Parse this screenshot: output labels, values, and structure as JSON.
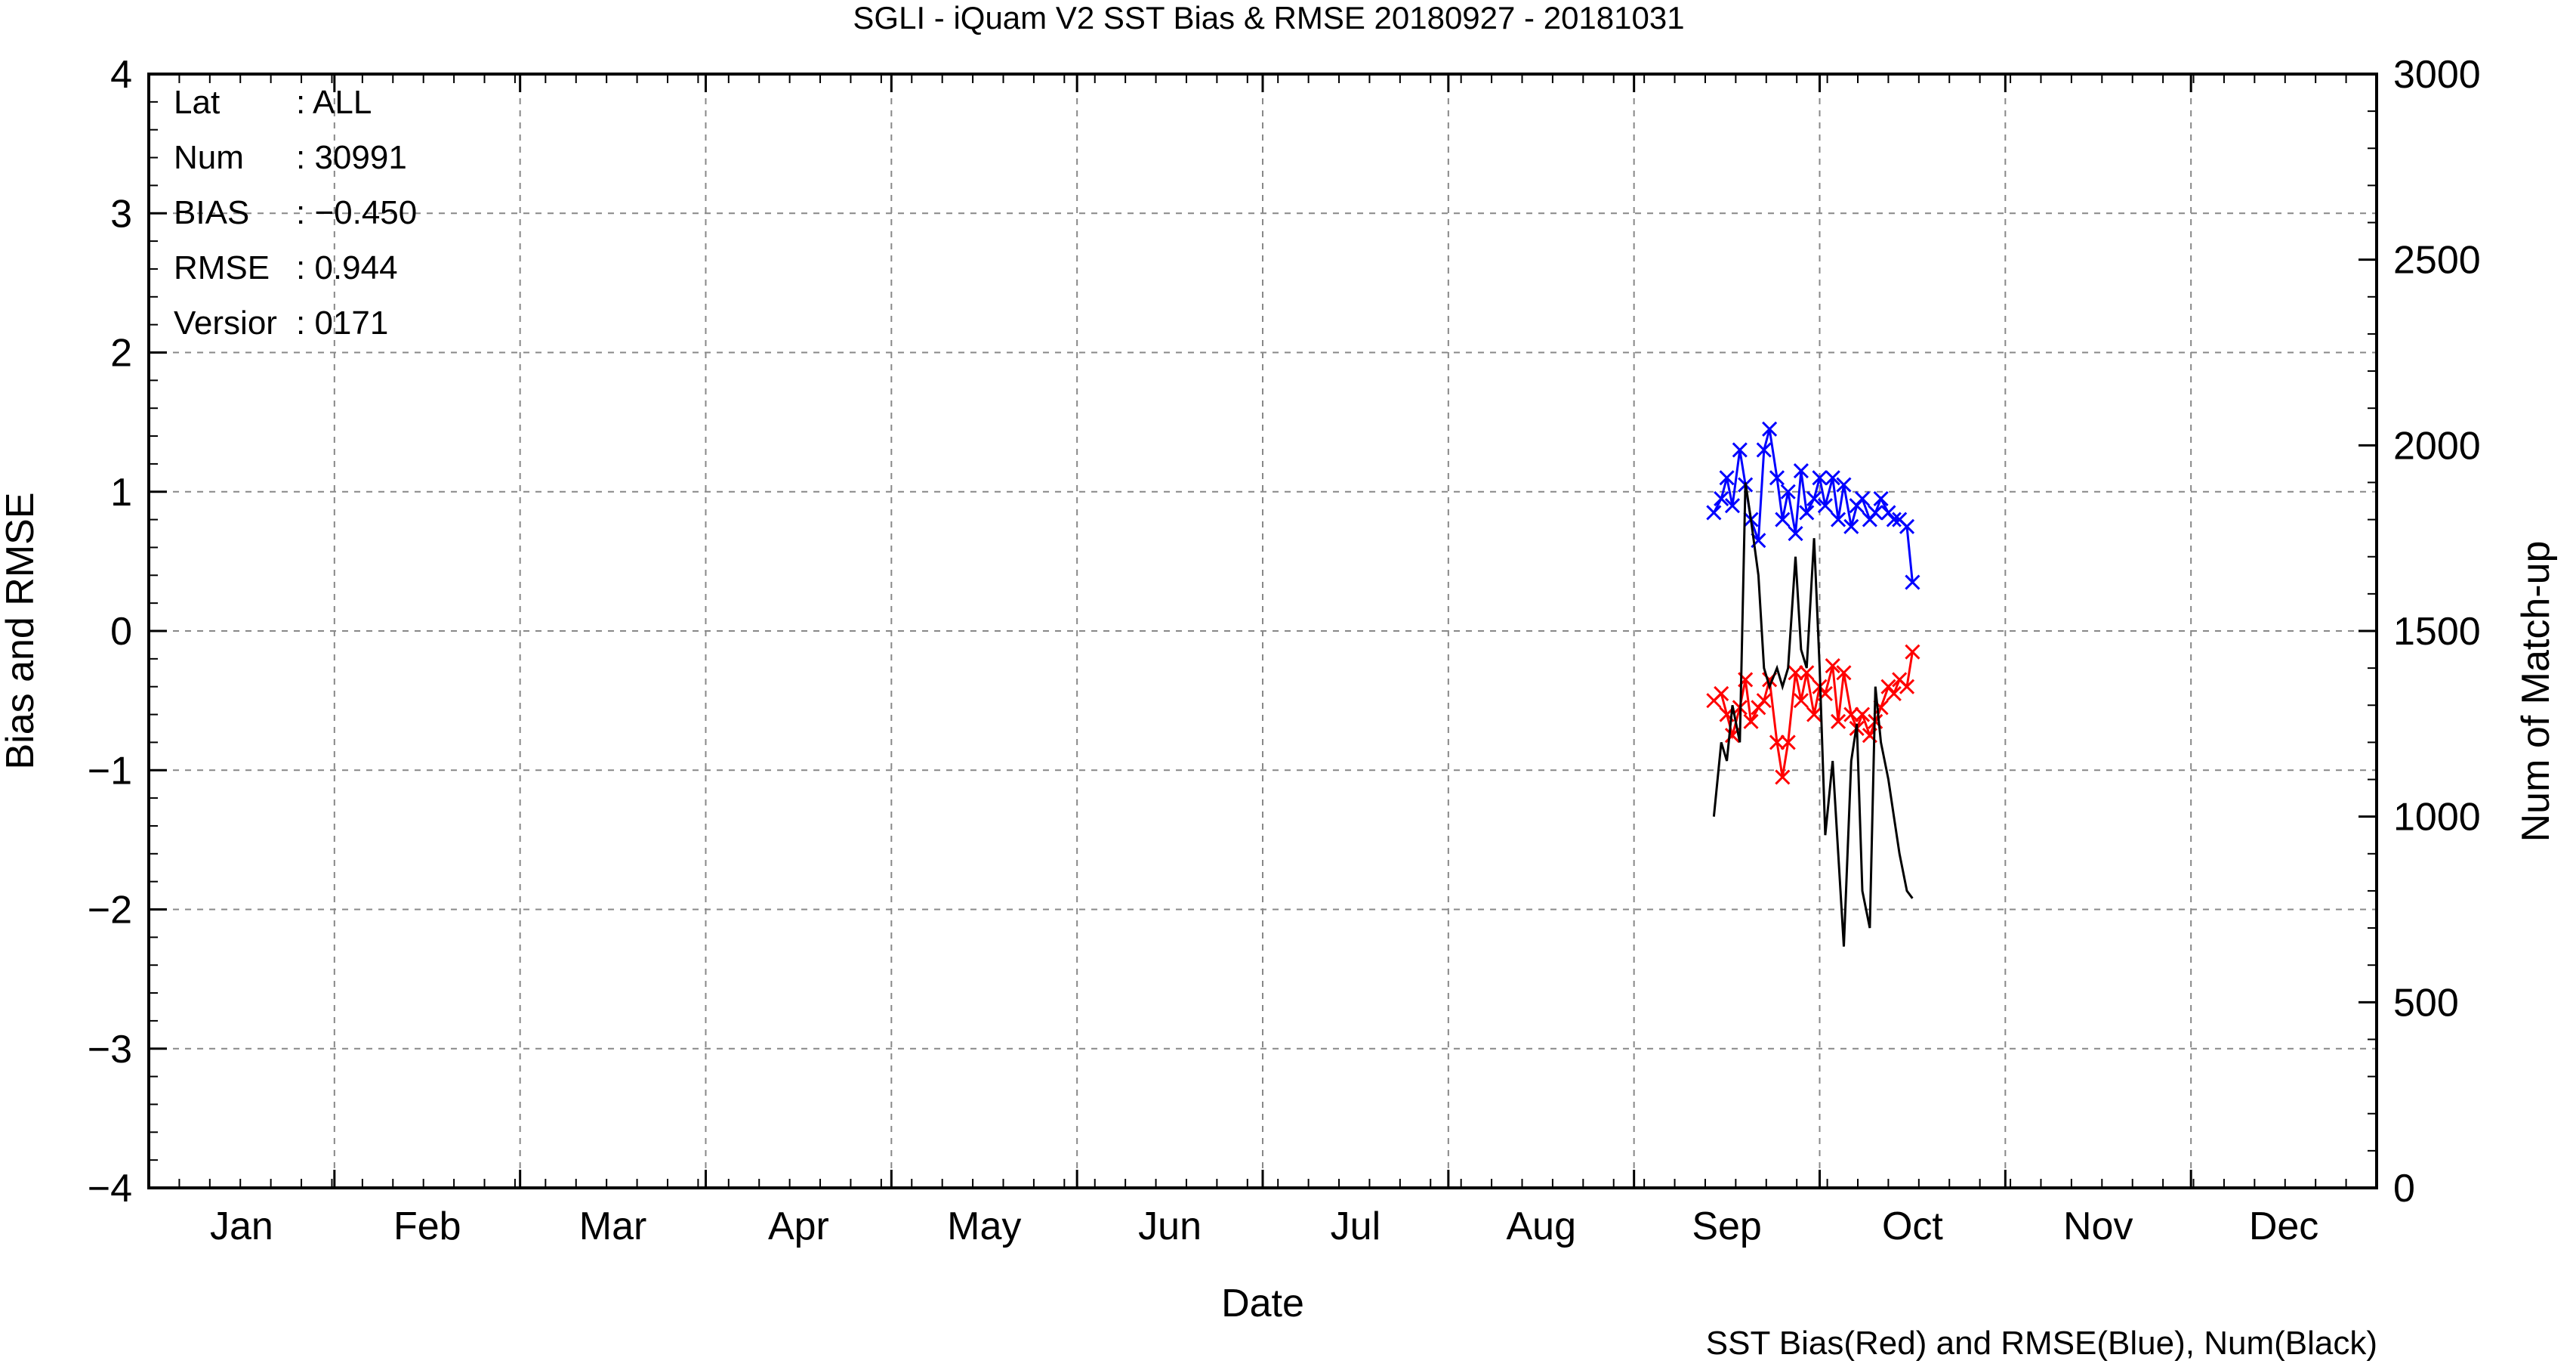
{
  "chart_data": {
    "type": "line",
    "title": "SGLI - iQuam V2 SST Bias & RMSE 20180927 - 20181031",
    "xlabel": "Date",
    "ylabel_left": "Bias and RMSE",
    "ylabel_right": "Num of Match-up",
    "footer": "SST Bias(Red) and RMSE(Blue), Num(Black)",
    "x_unit": "month of year",
    "xlim": [
      1,
      13
    ],
    "ylim_left": [
      -4,
      4
    ],
    "ylim_right": [
      0,
      3000
    ],
    "month_labels": [
      "Jan",
      "Feb",
      "Mar",
      "Apr",
      "May",
      "Jun",
      "Jul",
      "Aug",
      "Sep",
      "Oct",
      "Nov",
      "Dec"
    ],
    "yticks_left": [
      4,
      3,
      2,
      1,
      0,
      -1,
      -2,
      -3,
      -4
    ],
    "yticks_left_labels": [
      "4",
      "3",
      "2",
      "1",
      "0",
      "−1",
      "−2",
      "−3",
      "−4"
    ],
    "yticks_right": [
      3000,
      2500,
      2000,
      1500,
      1000,
      500,
      0
    ],
    "grid": true,
    "stats": [
      {
        "key": "Lat",
        "value": ": ALL"
      },
      {
        "key": "Num",
        "value": ": 30991"
      },
      {
        "key": "BIAS",
        "value": ": −0.450"
      },
      {
        "key": "RMSE",
        "value": ": 0.944"
      },
      {
        "key": "Versior",
        "value": ": 0171"
      }
    ],
    "series": [
      {
        "name": "SST Bias",
        "color": "#ff0000",
        "marker": "x",
        "axis": "left",
        "x": [
          9.43,
          9.47,
          9.5,
          9.53,
          9.57,
          9.6,
          9.63,
          9.67,
          9.7,
          9.73,
          9.77,
          9.8,
          9.83,
          9.87,
          9.9,
          9.93,
          9.97,
          10.0,
          10.03,
          10.07,
          10.1,
          10.13,
          10.17,
          10.2,
          10.23,
          10.27,
          10.3,
          10.33,
          10.37,
          10.4,
          10.43,
          10.47,
          10.5
        ],
        "y": [
          -0.5,
          -0.45,
          -0.6,
          -0.75,
          -0.55,
          -0.35,
          -0.65,
          -0.55,
          -0.5,
          -0.35,
          -0.8,
          -1.05,
          -0.8,
          -0.3,
          -0.5,
          -0.3,
          -0.6,
          -0.4,
          -0.45,
          -0.25,
          -0.65,
          -0.3,
          -0.6,
          -0.7,
          -0.6,
          -0.75,
          -0.65,
          -0.55,
          -0.4,
          -0.45,
          -0.35,
          -0.4,
          -0.15
        ]
      },
      {
        "name": "SST RMSE",
        "color": "#0000ff",
        "marker": "x",
        "axis": "left",
        "x": [
          9.43,
          9.47,
          9.5,
          9.53,
          9.57,
          9.6,
          9.63,
          9.67,
          9.7,
          9.73,
          9.77,
          9.8,
          9.83,
          9.87,
          9.9,
          9.93,
          9.97,
          10.0,
          10.03,
          10.07,
          10.1,
          10.13,
          10.17,
          10.2,
          10.23,
          10.27,
          10.3,
          10.33,
          10.37,
          10.4,
          10.43,
          10.47,
          10.5
        ],
        "y": [
          0.85,
          0.95,
          1.1,
          0.9,
          1.3,
          1.05,
          0.8,
          0.65,
          1.3,
          1.45,
          1.1,
          0.8,
          1.0,
          0.7,
          1.15,
          0.85,
          0.95,
          1.1,
          0.9,
          1.1,
          0.8,
          1.05,
          0.75,
          0.9,
          0.95,
          0.8,
          0.85,
          0.95,
          0.85,
          0.8,
          0.8,
          0.75,
          0.35
        ]
      },
      {
        "name": "Num",
        "color": "#000000",
        "marker": "none",
        "axis": "right",
        "x": [
          9.43,
          9.47,
          9.5,
          9.53,
          9.57,
          9.6,
          9.63,
          9.67,
          9.7,
          9.73,
          9.77,
          9.8,
          9.83,
          9.87,
          9.9,
          9.93,
          9.97,
          10.0,
          10.03,
          10.07,
          10.1,
          10.13,
          10.17,
          10.2,
          10.23,
          10.27,
          10.3,
          10.33,
          10.37,
          10.4,
          10.43,
          10.47,
          10.5
        ],
        "y": [
          1000,
          1200,
          1150,
          1300,
          1200,
          1900,
          1800,
          1650,
          1400,
          1350,
          1400,
          1350,
          1400,
          1700,
          1450,
          1400,
          1750,
          1400,
          950,
          1150,
          900,
          650,
          1150,
          1250,
          800,
          700,
          1350,
          1200,
          1100,
          1000,
          900,
          800,
          780
        ]
      }
    ]
  }
}
